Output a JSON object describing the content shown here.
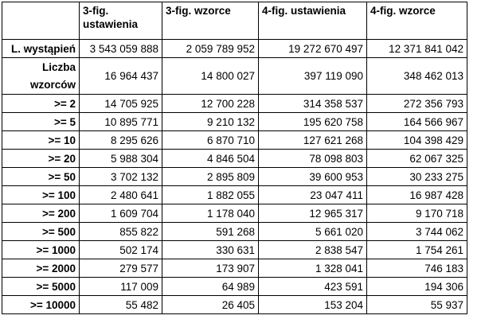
{
  "table": {
    "headers": [
      "",
      "3-fig. ustawienia",
      "3-fig. wzorce",
      "4-fig. ustawienia",
      "4-fig. wzorce"
    ],
    "rows": [
      {
        "label": "L. wystąpień",
        "values": [
          "3 543 059 888",
          "2 059 789 952",
          "19 272 670 497",
          "12 371 841 042"
        ]
      },
      {
        "label": "Liczba wzorców",
        "values": [
          "16 964 437",
          "14 800 027",
          "397 119 090",
          "348 462 013"
        ]
      },
      {
        "label": ">= 2",
        "values": [
          "14 705 925",
          "12 700 228",
          "314 358 537",
          "272 356 793"
        ]
      },
      {
        "label": ">= 5",
        "values": [
          "10 895 771",
          "9 210 132",
          "195 620 758",
          "164 566 967"
        ]
      },
      {
        "label": ">= 10",
        "values": [
          "8 295 626",
          "6 870 710",
          "127 621 268",
          "104 398 429"
        ]
      },
      {
        "label": ">= 20",
        "values": [
          "5 988 304",
          "4 846 504",
          "78 098 803",
          "62 067 325"
        ]
      },
      {
        "label": ">= 50",
        "values": [
          "3 702 132",
          "2 895 809",
          "39 600 953",
          "30 233 275"
        ]
      },
      {
        "label": ">= 100",
        "values": [
          "2 480 641",
          "1 882 055",
          "23 047 411",
          "16 987 428"
        ]
      },
      {
        "label": ">= 200",
        "values": [
          "1 609 704",
          "1 178 040",
          "12 965 317",
          "9 170 718"
        ]
      },
      {
        "label": ">= 500",
        "values": [
          "855 822",
          "591 268",
          "5 661 020",
          "3 744 062"
        ]
      },
      {
        "label": ">= 1000",
        "values": [
          "502 174",
          "330 631",
          "2 838 547",
          "1 754 261"
        ]
      },
      {
        "label": ">= 2000",
        "values": [
          "279 577",
          "173 907",
          "1 328 041",
          "746 183"
        ]
      },
      {
        "label": ">= 5000",
        "values": [
          "117 009",
          "64 989",
          "423 591",
          "194 306"
        ]
      },
      {
        "label": ">= 10000",
        "values": [
          "55 482",
          "26 405",
          "153 204",
          "55 937"
        ]
      }
    ]
  }
}
